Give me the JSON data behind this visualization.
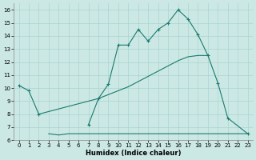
{
  "xlabel": "Humidex (Indice chaleur)",
  "color": "#1a7a6e",
  "bg_color": "#cce8e4",
  "grid_color": "#a8d4d0",
  "ylim": [
    6,
    16.5
  ],
  "xlim": [
    -0.5,
    23.5
  ],
  "yticks": [
    6,
    7,
    8,
    9,
    10,
    11,
    12,
    13,
    14,
    15,
    16
  ],
  "xticks": [
    0,
    1,
    2,
    3,
    4,
    5,
    6,
    7,
    8,
    9,
    10,
    11,
    12,
    13,
    14,
    15,
    16,
    17,
    18,
    19,
    20,
    21,
    22,
    23
  ],
  "upper_x": [
    0,
    1,
    2,
    7,
    8,
    9,
    10,
    11,
    12,
    13,
    14,
    15,
    16,
    17,
    18,
    19,
    20,
    21,
    23
  ],
  "upper_y": [
    10.2,
    9.8,
    8.0,
    7.2,
    9.2,
    10.3,
    13.3,
    13.3,
    14.5,
    13.6,
    14.5,
    15.0,
    16.0,
    15.3,
    14.1,
    12.5,
    10.4,
    7.7,
    6.5
  ],
  "lower_x": [
    3,
    4,
    5,
    6,
    7,
    8,
    9,
    10,
    11,
    12,
    13,
    14,
    15,
    16,
    17,
    18,
    19,
    20,
    21,
    22,
    23
  ],
  "lower_y": [
    6.5,
    6.4,
    6.5,
    6.5,
    6.5,
    6.5,
    6.5,
    6.5,
    6.5,
    6.5,
    6.5,
    6.5,
    6.5,
    6.5,
    6.5,
    6.5,
    6.5,
    6.5,
    6.5,
    6.5,
    6.5
  ],
  "mid_x": [
    2,
    3,
    4,
    5,
    6,
    7,
    8,
    9,
    10,
    11,
    12,
    13,
    14,
    15,
    16,
    17,
    18,
    19
  ],
  "mid_y": [
    8.0,
    8.2,
    8.4,
    8.6,
    8.8,
    9.0,
    9.2,
    9.5,
    9.8,
    10.1,
    10.5,
    10.9,
    11.3,
    11.7,
    12.1,
    12.4,
    12.5,
    12.5
  ]
}
